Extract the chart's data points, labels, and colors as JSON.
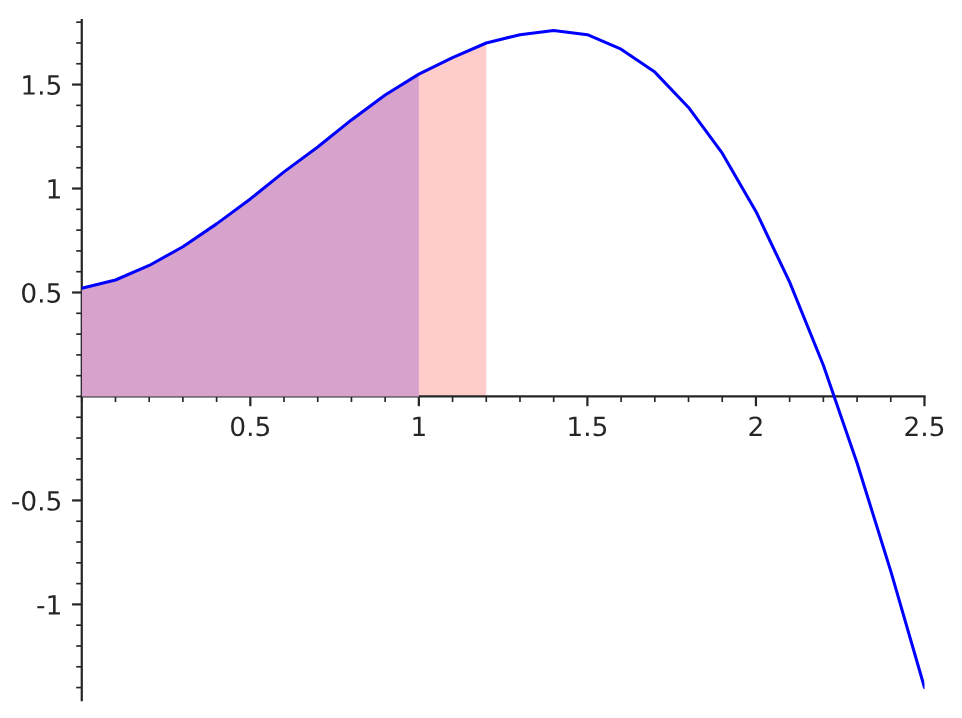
{
  "chart_data": {
    "type": "line",
    "xlim": [
      0,
      2.5
    ],
    "ylim": [
      -1.46,
      1.81
    ],
    "xticks": [
      0.5,
      1,
      1.5,
      2,
      2.5
    ],
    "yticks": [
      -1,
      -0.5,
      0.5,
      1,
      1.5
    ],
    "grid": false,
    "legend": false,
    "marker": "none",
    "line_style": "solid",
    "series": [
      {
        "type": "area",
        "color": "#ffcccc",
        "x": [
          0,
          0.1,
          0.2,
          0.3,
          0.4,
          0.5,
          0.6,
          0.7,
          0.8,
          0.9,
          1.0,
          1.1,
          1.2
        ],
        "values": [
          0.52,
          0.56,
          0.63,
          0.72,
          0.83,
          0.95,
          1.08,
          1.2,
          1.33,
          1.45,
          1.55,
          1.63,
          1.7
        ]
      },
      {
        "type": "area",
        "color": "#d7a3cc",
        "x": [
          0,
          0.1,
          0.2,
          0.3,
          0.4,
          0.5,
          0.6,
          0.7,
          0.8,
          0.9,
          1.0
        ],
        "values": [
          0.52,
          0.56,
          0.63,
          0.72,
          0.83,
          0.95,
          1.08,
          1.2,
          1.33,
          1.45,
          1.55
        ]
      },
      {
        "type": "line",
        "color": "#0000ff",
        "x": [
          0,
          0.1,
          0.2,
          0.3,
          0.4,
          0.5,
          0.6,
          0.7,
          0.8,
          0.9,
          1.0,
          1.1,
          1.2,
          1.3,
          1.4,
          1.5,
          1.6,
          1.7,
          1.8,
          1.9,
          2.0,
          2.1,
          2.2,
          2.3,
          2.4,
          2.5
        ],
        "values": [
          0.52,
          0.56,
          0.63,
          0.72,
          0.83,
          0.95,
          1.08,
          1.2,
          1.33,
          1.45,
          1.55,
          1.63,
          1.7,
          1.74,
          1.76,
          1.74,
          1.67,
          1.56,
          1.39,
          1.17,
          0.89,
          0.55,
          0.15,
          -0.32,
          -0.84,
          -1.4
        ]
      }
    ]
  }
}
